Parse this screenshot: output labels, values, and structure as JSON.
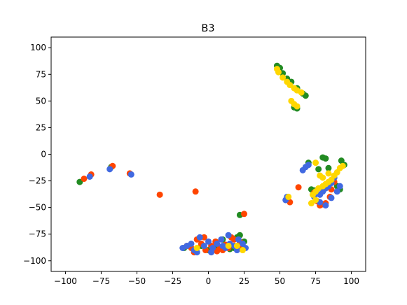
{
  "chart_data": {
    "type": "scatter",
    "title": "B3",
    "xlabel": "",
    "ylabel": "",
    "xlim": [
      -110,
      110
    ],
    "ylim": [
      -110,
      110
    ],
    "xticks": [
      -100,
      -75,
      -50,
      -25,
      0,
      25,
      50,
      75,
      100
    ],
    "yticks": [
      -100,
      -75,
      -50,
      -25,
      0,
      25,
      50,
      75,
      100
    ],
    "grid": false,
    "legend": "none",
    "colors": {
      "green": "#228b22",
      "orange": "#ff4500",
      "blue": "#4169e1",
      "yellow": "#ffd700"
    },
    "series": [
      {
        "color": "green",
        "points": [
          [
            -90,
            -26
          ],
          [
            -68,
            -12
          ],
          [
            48,
            83
          ],
          [
            50,
            81
          ],
          [
            52,
            76
          ],
          [
            55,
            71
          ],
          [
            58,
            68
          ],
          [
            62,
            62
          ],
          [
            66,
            57
          ],
          [
            68,
            55
          ],
          [
            60,
            44
          ],
          [
            62,
            43
          ],
          [
            22,
            -57
          ],
          [
            80,
            -3
          ],
          [
            82,
            -4
          ],
          [
            84,
            -13
          ],
          [
            90,
            -30
          ],
          [
            92,
            -33
          ],
          [
            88,
            -22
          ],
          [
            93,
            -6
          ],
          [
            95,
            -10
          ],
          [
            72,
            -33
          ],
          [
            74,
            -34
          ],
          [
            22,
            -76
          ],
          [
            20,
            -78
          ],
          [
            15,
            -89
          ],
          [
            18,
            -88
          ],
          [
            -5,
            -86
          ],
          [
            0,
            -90
          ],
          [
            5,
            -88
          ],
          [
            10,
            -80
          ],
          [
            25,
            -82
          ],
          [
            -17,
            -88
          ],
          [
            77,
            -14
          ],
          [
            70,
            -8
          ]
        ]
      },
      {
        "color": "orange",
        "points": [
          [
            -87,
            -23
          ],
          [
            -82,
            -19
          ],
          [
            -67,
            -11
          ],
          [
            -55,
            -18
          ],
          [
            -34,
            -38
          ],
          [
            -9,
            -35
          ],
          [
            25,
            -56
          ],
          [
            63,
            -31
          ],
          [
            76,
            -44
          ],
          [
            78,
            -48
          ],
          [
            80,
            -47
          ],
          [
            82,
            -46
          ],
          [
            74,
            -36
          ],
          [
            85,
            -40
          ],
          [
            88,
            -26
          ],
          [
            86,
            -33
          ],
          [
            57,
            -45
          ],
          [
            -12,
            -88
          ],
          [
            -8,
            -80
          ],
          [
            -5,
            -84
          ],
          [
            -2,
            -90
          ],
          [
            2,
            -86
          ],
          [
            5,
            -82
          ],
          [
            8,
            -88
          ],
          [
            12,
            -85
          ],
          [
            16,
            -78
          ],
          [
            18,
            -80
          ],
          [
            22,
            -82
          ],
          [
            24,
            -88
          ],
          [
            10,
            -90
          ],
          [
            -15,
            -86
          ],
          [
            -3,
            -78
          ],
          [
            14,
            -88
          ],
          [
            6,
            -91
          ],
          [
            -10,
            -92
          ],
          [
            20,
            -86
          ]
        ]
      },
      {
        "color": "blue",
        "points": [
          [
            -83,
            -21
          ],
          [
            -69,
            -14
          ],
          [
            -54,
            -19
          ],
          [
            54,
            -43
          ],
          [
            55,
            -40
          ],
          [
            66,
            -15
          ],
          [
            68,
            -12
          ],
          [
            70,
            -10
          ],
          [
            78,
            -38
          ],
          [
            80,
            -35
          ],
          [
            82,
            -32
          ],
          [
            84,
            -30
          ],
          [
            86,
            -27
          ],
          [
            88,
            -22
          ],
          [
            78,
            -45
          ],
          [
            82,
            -48
          ],
          [
            86,
            -41
          ],
          [
            90,
            -35
          ],
          [
            92,
            -30
          ],
          [
            74,
            -40
          ],
          [
            -18,
            -88
          ],
          [
            -15,
            -86
          ],
          [
            -12,
            -84
          ],
          [
            -10,
            -90
          ],
          [
            -6,
            -78
          ],
          [
            -3,
            -86
          ],
          [
            0,
            -82
          ],
          [
            3,
            -88
          ],
          [
            6,
            -84
          ],
          [
            9,
            -80
          ],
          [
            12,
            -88
          ],
          [
            15,
            -84
          ],
          [
            18,
            -86
          ],
          [
            21,
            -80
          ],
          [
            24,
            -84
          ],
          [
            26,
            -88
          ],
          [
            2,
            -92
          ],
          [
            -8,
            -92
          ],
          [
            14,
            -76
          ],
          [
            20,
            -90
          ],
          [
            10,
            -86
          ]
        ]
      },
      {
        "color": "yellow",
        "points": [
          [
            48,
            80
          ],
          [
            49,
            77
          ],
          [
            52,
            72
          ],
          [
            55,
            68
          ],
          [
            57,
            65
          ],
          [
            60,
            62
          ],
          [
            62,
            60
          ],
          [
            65,
            58
          ],
          [
            58,
            50
          ],
          [
            60,
            47
          ],
          [
            62,
            45
          ],
          [
            56,
            -40
          ],
          [
            73,
            -38
          ],
          [
            75,
            -35
          ],
          [
            77,
            -32
          ],
          [
            80,
            -30
          ],
          [
            82,
            -28
          ],
          [
            84,
            -26
          ],
          [
            86,
            -24
          ],
          [
            88,
            -20
          ],
          [
            90,
            -17
          ],
          [
            92,
            -13
          ],
          [
            94,
            -11
          ],
          [
            80,
            -22
          ],
          [
            78,
            -20
          ],
          [
            84,
            -18
          ],
          [
            75,
            -43
          ],
          [
            72,
            -46
          ],
          [
            20,
            -86
          ],
          [
            24,
            -90
          ],
          [
            14,
            -86
          ],
          [
            75,
            -8
          ],
          [
            -8,
            -88
          ]
        ]
      }
    ]
  }
}
